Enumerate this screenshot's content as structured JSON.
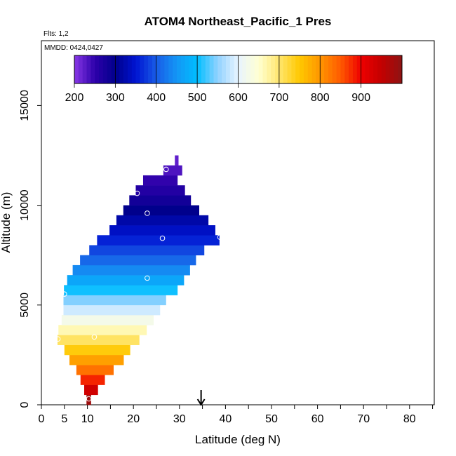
{
  "chart_data": {
    "type": "heatmap",
    "title": "ATOM4 Northeast_Pacific_1 Pres",
    "flights_note": "Flts: 1,2",
    "date_note": "MMDD: 0424,0427",
    "xlabel": "Latitude (deg N)",
    "ylabel": "Altitude (m)",
    "xlim": [
      0,
      85
    ],
    "ylim": [
      0,
      17500
    ],
    "x_ticks": [
      0,
      5,
      10,
      20,
      30,
      40,
      50,
      60,
      70,
      80
    ],
    "x_tick_labels": [
      "0",
      "5",
      "10",
      "20",
      "30",
      "40",
      "50",
      "60",
      "70",
      "80"
    ],
    "y_ticks": [
      0,
      5000,
      10000,
      15000
    ],
    "y_tick_labels": [
      "0",
      "5000",
      "10000",
      "15000"
    ],
    "colorbar": {
      "range": [
        200,
        1000
      ],
      "ticks": [
        200,
        300,
        400,
        500,
        600,
        700,
        800,
        900
      ],
      "tick_labels": [
        "200",
        "300",
        "400",
        "500",
        "600",
        "700",
        "800",
        "900"
      ]
    },
    "arrow_latitude": 34.7,
    "rows_note": "Each row: altitude band [bottom, top] in m, latitude extent [min, max] deg N, pressure hPa",
    "rows": [
      {
        "alt": [
          0,
          500
        ],
        "lat": [
          9.8,
          10.8
        ],
        "pres": 985
      },
      {
        "alt": [
          500,
          1000
        ],
        "lat": [
          9.3,
          12.3
        ],
        "pres": 935
      },
      {
        "alt": [
          1000,
          1500
        ],
        "lat": [
          8.5,
          13.8
        ],
        "pres": 880
      },
      {
        "alt": [
          1500,
          2000
        ],
        "lat": [
          7.6,
          15.7
        ],
        "pres": 830
      },
      {
        "alt": [
          2000,
          2500
        ],
        "lat": [
          6.1,
          17.9
        ],
        "pres": 790
      },
      {
        "alt": [
          2500,
          3000
        ],
        "lat": [
          5.0,
          19.3
        ],
        "pres": 745
      },
      {
        "alt": [
          3000,
          3500
        ],
        "lat": [
          3.5,
          21.3
        ],
        "pres": 705
      },
      {
        "alt": [
          3500,
          4000
        ],
        "lat": [
          3.7,
          22.9
        ],
        "pres": 665
      },
      {
        "alt": [
          4000,
          4500
        ],
        "lat": [
          4.4,
          24.4
        ],
        "pres": 625
      },
      {
        "alt": [
          4500,
          5000
        ],
        "lat": [
          4.8,
          25.8
        ],
        "pres": 585
      },
      {
        "alt": [
          5000,
          5500
        ],
        "lat": [
          4.8,
          27.1
        ],
        "pres": 545
      },
      {
        "alt": [
          5500,
          6000
        ],
        "lat": [
          4.9,
          29.6
        ],
        "pres": 505
      },
      {
        "alt": [
          6000,
          6500
        ],
        "lat": [
          5.6,
          31.0
        ],
        "pres": 470
      },
      {
        "alt": [
          6500,
          7000
        ],
        "lat": [
          6.8,
          32.3
        ],
        "pres": 440
      },
      {
        "alt": [
          7000,
          7500
        ],
        "lat": [
          8.4,
          33.6
        ],
        "pres": 410
      },
      {
        "alt": [
          7500,
          8000
        ],
        "lat": [
          10.4,
          35.4
        ],
        "pres": 385
      },
      {
        "alt": [
          8000,
          8500
        ],
        "lat": [
          12.1,
          38.7
        ],
        "pres": 360
      },
      {
        "alt": [
          8500,
          9000
        ],
        "lat": [
          14.8,
          37.8
        ],
        "pres": 340
      },
      {
        "alt": [
          9000,
          9500
        ],
        "lat": [
          16.3,
          36.3
        ],
        "pres": 320
      },
      {
        "alt": [
          9500,
          10000
        ],
        "lat": [
          17.8,
          34.3
        ],
        "pres": 300
      },
      {
        "alt": [
          10000,
          10500
        ],
        "lat": [
          19.1,
          32.5
        ],
        "pres": 280
      },
      {
        "alt": [
          10500,
          11000
        ],
        "lat": [
          20.5,
          31.2
        ],
        "pres": 262
      },
      {
        "alt": [
          11000,
          11500
        ],
        "lat": [
          22.1,
          29.6
        ],
        "pres": 248
      },
      {
        "alt": [
          11500,
          12000
        ],
        "lat": [
          26.5,
          30.6
        ],
        "pres": 232
      },
      {
        "alt": [
          12000,
          12500
        ],
        "lat": [
          29.0,
          29.8
        ],
        "pres": 222
      }
    ],
    "markers": [
      {
        "lat": 27.1,
        "alt": 11800
      },
      {
        "lat": 20.8,
        "alt": 10600
      },
      {
        "lat": 23.0,
        "alt": 9600
      },
      {
        "lat": 26.3,
        "alt": 8350
      },
      {
        "lat": 38.8,
        "alt": 8400
      },
      {
        "lat": 23.0,
        "alt": 6350
      },
      {
        "lat": 5.0,
        "alt": 5550
      },
      {
        "lat": 3.6,
        "alt": 3300
      },
      {
        "lat": 11.5,
        "alt": 3400
      },
      {
        "lat": 10.3,
        "alt": 300
      }
    ]
  }
}
